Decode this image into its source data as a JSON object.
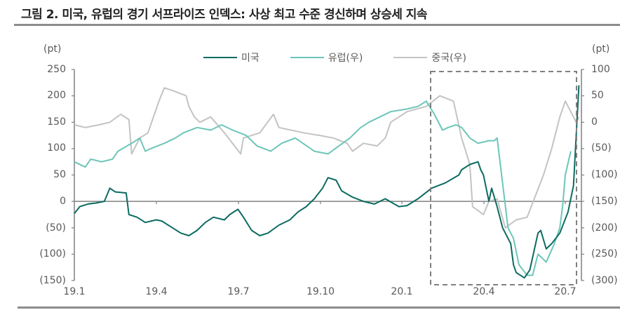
{
  "title": "그림 2. 미국, 유럽의 경기 서프라이즈 인덱스: 사상 최고 수준 경신하며 상승세 지속",
  "axes": {
    "left_unit": "(pt)",
    "right_unit": "(pt)",
    "left_ticks": [
      "250",
      "200",
      "150",
      "100",
      "50",
      "0",
      "(50)",
      "(100)",
      "(150)"
    ],
    "right_ticks": [
      "100",
      "50",
      "0",
      "(50)",
      "(100)",
      "(150)",
      "(200)",
      "(250)",
      "(300)"
    ],
    "x_ticks": [
      "19.1",
      "19.4",
      "19.7",
      "19.10",
      "20.1",
      "20.4",
      "20.7"
    ]
  },
  "legend": [
    {
      "label": "미국",
      "color": "#0b6b61"
    },
    {
      "label": "유럽(우)",
      "color": "#6cc6b8"
    },
    {
      "label": "중국(우)",
      "color": "#c3c3c3"
    }
  ],
  "colors": {
    "us": "#0b6b61",
    "europe": "#6cc6b8",
    "china": "#c3c3c3",
    "axis": "#808080",
    "highlight_box": "#808080"
  },
  "chart_data": {
    "type": "line",
    "title": "그림 2. 미국, 유럽의 경기 서프라이즈 인덱스: 사상 최고 수준 경신하며 상승세 지속",
    "xlabel": "",
    "ylabel": "(pt)",
    "y2label": "(pt)",
    "x_ticks": [
      "19.1",
      "19.4",
      "19.7",
      "19.10",
      "20.1",
      "20.4",
      "20.7"
    ],
    "x_range": [
      "2019-01",
      "2020-07"
    ],
    "ylim": [
      -150,
      250
    ],
    "y2lim": [
      -300,
      100
    ],
    "grid": false,
    "legend_position": "top",
    "annotations": [
      "dashed highlight box from ~2020-02 to 2020-07"
    ],
    "series": [
      {
        "name": "미국",
        "axis": "left",
        "x": [
          0.0,
          0.2,
          0.5,
          0.8,
          1.1,
          1.3,
          1.5,
          1.9,
          2.0,
          2.3,
          2.6,
          3.0,
          3.2,
          3.6,
          3.9,
          4.2,
          4.5,
          4.8,
          5.1,
          5.5,
          5.7,
          6.0,
          6.2,
          6.5,
          6.8,
          7.1,
          7.5,
          7.9,
          8.2,
          8.5,
          8.8,
          9.1,
          9.3,
          9.6,
          9.8,
          10.2,
          10.6,
          11.0,
          11.4,
          11.9,
          12.2,
          12.6,
          13.1,
          13.6,
          14.1,
          14.2,
          14.5,
          14.8,
          14.9,
          15.0,
          15.2,
          15.3,
          15.5,
          15.7,
          16.0,
          16.1,
          16.2,
          16.5,
          16.7,
          17.0,
          17.1,
          17.3,
          17.5,
          17.8,
          18.1,
          18.3,
          18.5
        ],
        "values": [
          -23,
          -10,
          -5,
          -3,
          0,
          25,
          18,
          16,
          -25,
          -30,
          -40,
          -35,
          -37,
          -50,
          -60,
          -65,
          -55,
          -40,
          -30,
          -35,
          -25,
          -15,
          -30,
          -55,
          -65,
          -60,
          -45,
          -35,
          -20,
          -10,
          5,
          25,
          45,
          40,
          20,
          8,
          0,
          -5,
          5,
          -10,
          -8,
          5,
          25,
          35,
          50,
          60,
          70,
          75,
          60,
          50,
          0,
          25,
          -10,
          -50,
          -80,
          -120,
          -135,
          -145,
          -130,
          -60,
          -55,
          -90,
          -80,
          -60,
          -20,
          30,
          220
        ]
      },
      {
        "name": "유럽(우)",
        "axis": "right",
        "x": [
          0.0,
          0.4,
          0.6,
          1.0,
          1.4,
          1.6,
          2.1,
          2.4,
          2.6,
          2.8,
          3.3,
          3.7,
          4.0,
          4.5,
          5.0,
          5.4,
          5.8,
          6.3,
          6.7,
          7.2,
          7.6,
          8.1,
          8.8,
          9.3,
          9.7,
          10.1,
          10.5,
          10.8,
          11.2,
          11.6,
          12.2,
          12.6,
          12.9,
          13.2,
          13.5,
          13.7,
          14.0,
          14.2,
          14.5,
          14.8,
          15.2,
          15.4,
          15.5,
          15.9,
          16.1,
          16.3,
          16.6,
          16.8,
          17.0,
          17.3,
          17.6,
          17.8,
          17.9,
          18.0,
          18.2
        ],
        "values": [
          -75,
          -85,
          -70,
          -75,
          -70,
          -55,
          -40,
          -30,
          -55,
          -50,
          -40,
          -30,
          -20,
          -10,
          -15,
          -5,
          -15,
          -25,
          -45,
          -55,
          -40,
          -30,
          -55,
          -60,
          -45,
          -30,
          -10,
          0,
          10,
          20,
          25,
          30,
          40,
          15,
          -15,
          -10,
          -5,
          -10,
          -30,
          -40,
          -35,
          -35,
          -30,
          -200,
          -220,
          -270,
          -290,
          -290,
          -250,
          -265,
          -230,
          -200,
          -160,
          -100,
          -55
        ]
      },
      {
        "name": "중국(우)",
        "axis": "right",
        "x": [
          0.0,
          0.4,
          0.9,
          1.3,
          1.7,
          2.0,
          2.1,
          2.4,
          2.7,
          3.1,
          3.3,
          3.6,
          4.1,
          4.2,
          4.4,
          4.6,
          5.0,
          5.5,
          6.1,
          6.2,
          6.8,
          7.3,
          7.5,
          8.4,
          9.0,
          9.5,
          10.0,
          10.2,
          10.6,
          11.1,
          11.4,
          11.6,
          12.2,
          12.9,
          13.4,
          13.9,
          14.2,
          14.5,
          14.6,
          15.0,
          15.2,
          15.5,
          15.8,
          16.2,
          16.6,
          17.2,
          17.5,
          17.8,
          18.0,
          18.2,
          18.4,
          18.5
        ],
        "values": [
          -5,
          -10,
          -5,
          0,
          15,
          5,
          -60,
          -30,
          -20,
          40,
          65,
          60,
          50,
          30,
          10,
          0,
          10,
          -20,
          -60,
          -30,
          -20,
          15,
          -10,
          -20,
          -25,
          -30,
          -40,
          -55,
          -40,
          -45,
          -30,
          0,
          20,
          30,
          50,
          40,
          -30,
          -80,
          -160,
          -175,
          -150,
          -145,
          -200,
          -185,
          -180,
          -100,
          -50,
          10,
          40,
          20,
          0,
          10
        ]
      }
    ]
  }
}
